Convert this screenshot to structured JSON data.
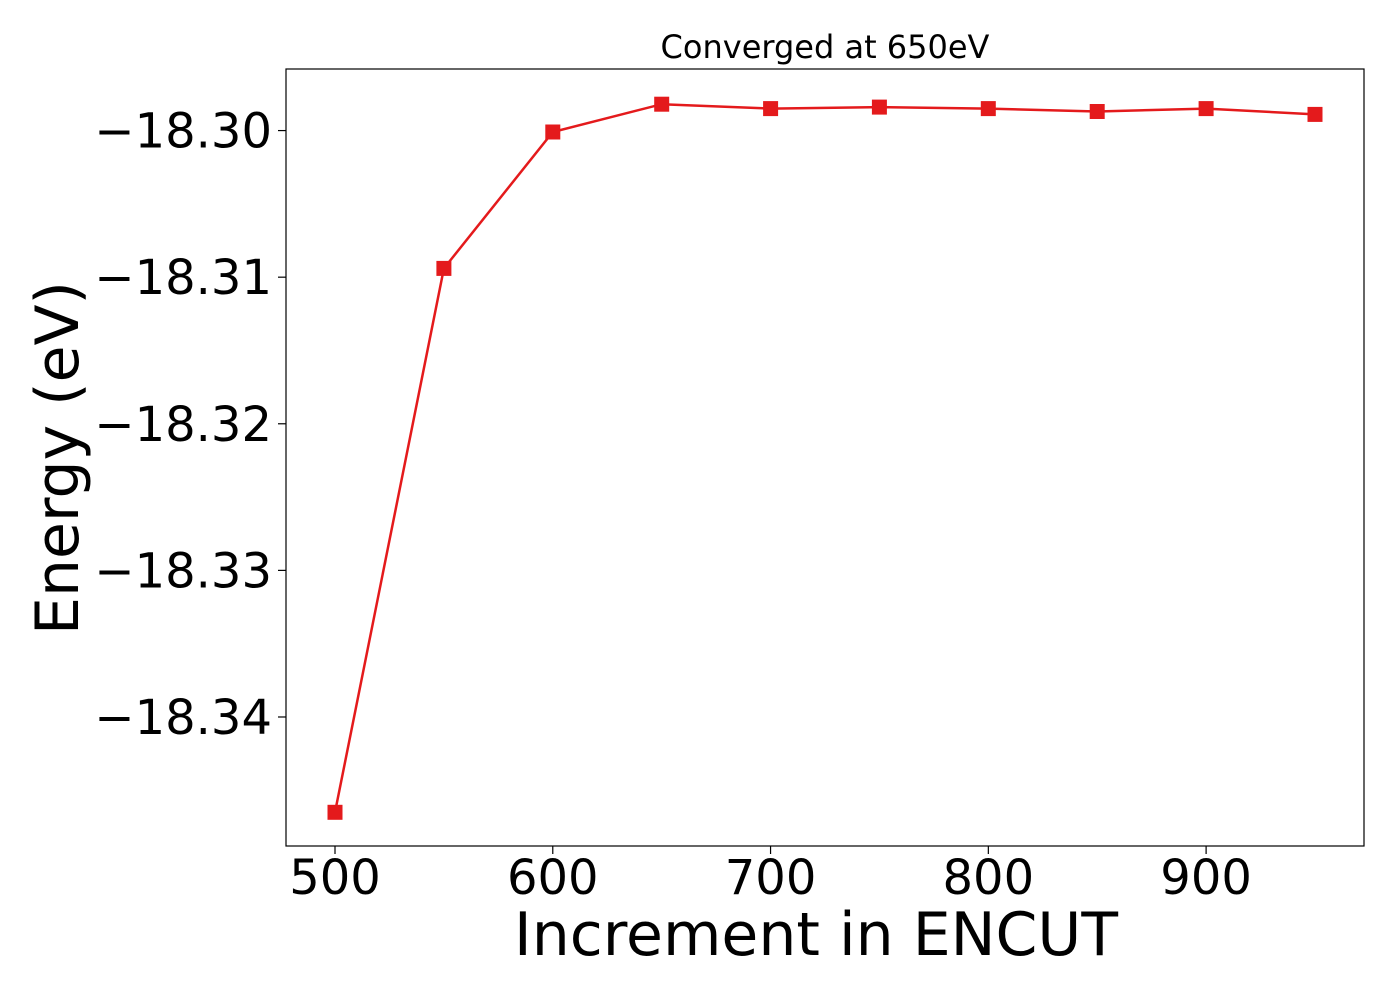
{
  "chart_data": {
    "type": "line",
    "title": "Converged at 650eV",
    "xlabel": "Increment in ENCUT",
    "ylabel": "Energy (eV)",
    "x": [
      500,
      550,
      600,
      650,
      700,
      750,
      800,
      850,
      900,
      950
    ],
    "series": [
      {
        "values": [
          -18.3465,
          -18.3094,
          -18.3001,
          -18.2982,
          -18.2985,
          -18.2984,
          -18.2985,
          -18.2987,
          -18.2985,
          -18.2989
        ],
        "color": "#e41a1c",
        "marker": "square"
      }
    ],
    "xticks": [
      500,
      600,
      700,
      800,
      900
    ],
    "xtick_labels": [
      "500",
      "600",
      "700",
      "800",
      "900"
    ],
    "yticks": [
      -18.34,
      -18.33,
      -18.32,
      -18.31,
      -18.3
    ],
    "ytick_labels": [
      "−18.34",
      "−18.33",
      "−18.32",
      "−18.31",
      "−18.30"
    ],
    "xlim": [
      477.5,
      972.5
    ],
    "ylim": [
      -18.3488,
      -18.2958
    ],
    "grid": false,
    "legend": false
  }
}
